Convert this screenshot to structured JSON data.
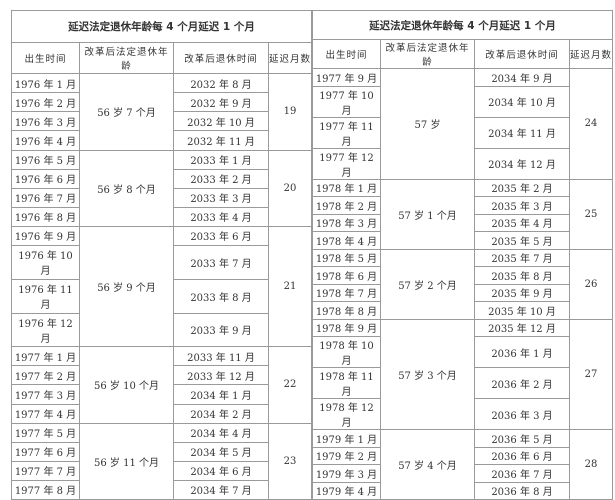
{
  "tables": [
    {
      "title": "延迟法定退休年龄每 4 个月延迟 1 个月",
      "headers": [
        "出生时间",
        "改革后法定退休年龄",
        "改革后退休时间",
        "延迟月数"
      ],
      "groups": [
        {
          "age": "56 岁 7 个月",
          "delay": "19",
          "births": [
            "1976 年 1 月",
            "1976 年 2 月",
            "1976 年 3 月",
            "1976 年 4 月"
          ],
          "retire": [
            "2032 年 8 月",
            "2032 年 9 月",
            "2032 年 10 月",
            "2032 年 11 月"
          ]
        },
        {
          "age": "56 岁 8 个月",
          "delay": "20",
          "births": [
            "1976 年 5 月",
            "1976 年 6 月",
            "1976 年 7 月",
            "1976 年 8 月"
          ],
          "retire": [
            "2033 年 1 月",
            "2033 年 2 月",
            "2033 年 3 月",
            "2033 年 4 月"
          ]
        },
        {
          "age": "56 岁 9 个月",
          "delay": "21",
          "births": [
            "1976 年 9 月",
            "1976 年 10 月",
            "1976 年 11 月",
            "1976 年 12 月"
          ],
          "retire": [
            "2033 年 6 月",
            "2033 年 7 月",
            "2033 年 8 月",
            "2033 年 9 月"
          ]
        },
        {
          "age": "56 岁 10 个月",
          "delay": "22",
          "births": [
            "1977 年 1 月",
            "1977 年 2 月",
            "1977 年 3 月",
            "1977 年 4 月"
          ],
          "retire": [
            "2033 年 11 月",
            "2033 年 12 月",
            "2034 年 1 月",
            "2034 年 2 月"
          ]
        },
        {
          "age": "56 岁 11 个月",
          "delay": "23",
          "births": [
            "1977 年 5 月",
            "1977 年 6 月",
            "1977 年 7 月",
            "1977 年 8 月"
          ],
          "retire": [
            "2034 年 4 月",
            "2034 年 5 月",
            "2034 年 6 月",
            "2034 年 7 月"
          ]
        }
      ]
    },
    {
      "title": "延迟法定退休年龄每 4 个月延迟 1 个月",
      "headers": [
        "出生时间",
        "改革后法定退休年龄",
        "改革后退休时间",
        "延迟月数"
      ],
      "groups": [
        {
          "age": "57 岁",
          "delay": "24",
          "births": [
            "1977 年 9 月",
            "1977 年 10 月",
            "1977 年 11 月",
            "1977 年 12 月"
          ],
          "retire": [
            "2034 年 9 月",
            "2034 年 10 月",
            "2034 年 11 月",
            "2034 年 12 月"
          ]
        },
        {
          "age": "57 岁 1 个月",
          "delay": "25",
          "births": [
            "1978 年 1 月",
            "1978 年 2 月",
            "1978 年 3 月",
            "1978 年 4 月"
          ],
          "retire": [
            "2035 年 2 月",
            "2035 年 3 月",
            "2035 年 4 月",
            "2035 年 5 月"
          ]
        },
        {
          "age": "57 岁 2 个月",
          "delay": "26",
          "births": [
            "1978 年 5 月",
            "1978 年 6 月",
            "1978 年 7 月",
            "1978 年 8 月"
          ],
          "retire": [
            "2035 年 7 月",
            "2035 年 8 月",
            "2035 年 9 月",
            "2035 年 10 月"
          ]
        },
        {
          "age": "57 岁 3 个月",
          "delay": "27",
          "births": [
            "1978 年 9 月",
            "1978 年 10 月",
            "1978 年 11 月",
            "1978 年 12 月"
          ],
          "retire": [
            "2035 年 12 月",
            "2036 年 1 月",
            "2036 年 2 月",
            "2036 年 3 月"
          ]
        },
        {
          "age": "57 岁 4 个月",
          "delay": "28",
          "births": [
            "1979 年 1 月",
            "1979 年 2 月",
            "1979 年 3 月",
            "1979 年 4 月"
          ],
          "retire": [
            "2036 年 5 月",
            "2036 年 6 月",
            "2036 年 7 月",
            "2036 年 8 月"
          ]
        }
      ]
    }
  ]
}
